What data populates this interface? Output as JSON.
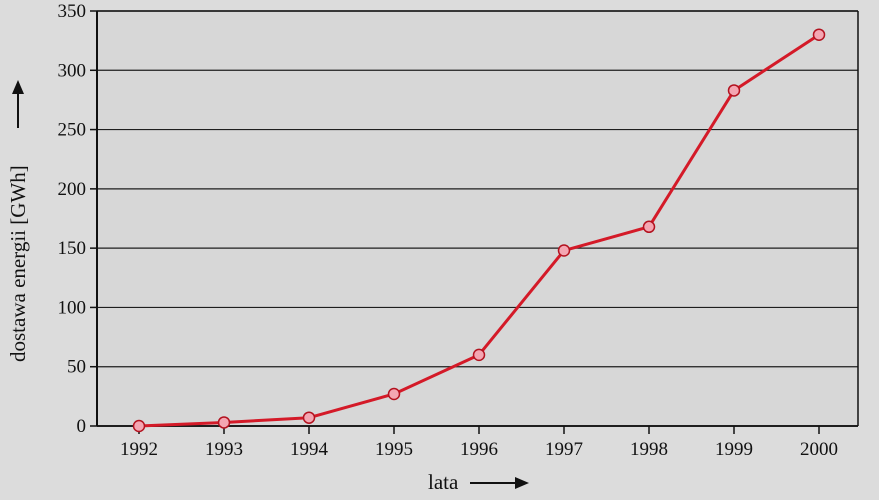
{
  "chart_data": {
    "type": "line",
    "title": "",
    "xlabel": "lata",
    "ylabel": "dostawa energii [GWh]",
    "x": [
      "1992",
      "1993",
      "1994",
      "1995",
      "1996",
      "1997",
      "1998",
      "1999",
      "2000"
    ],
    "series": [
      {
        "values": [
          0,
          3,
          7,
          27,
          60,
          148,
          168,
          283,
          330
        ]
      }
    ],
    "y_ticks": [
      0,
      50,
      100,
      150,
      200,
      250,
      300,
      350
    ],
    "ylim": [
      0,
      350
    ],
    "grid": "horizontal",
    "legend": "none",
    "colors": {
      "line": "#d41a28",
      "marker_fill": "#f4a6b2",
      "marker_edge": "#b3121f",
      "plot_background": "#d7d7d7",
      "gridline": "#1e1e1e",
      "page_background": "#dcdcdc"
    }
  }
}
